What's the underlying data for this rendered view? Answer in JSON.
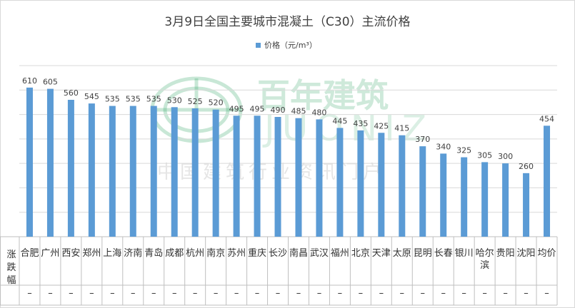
{
  "chart_data": {
    "type": "bar",
    "title": "3月9日全国主要城市混凝土（C30）主流价格",
    "legend_label": "价格（元/m³）",
    "legend_position": "top-center",
    "grid": true,
    "bar_color": "#5b9bd5",
    "ylim": [
      0,
      700
    ],
    "categories": [
      "合肥",
      "广州",
      "西安",
      "郑州",
      "上海",
      "济南",
      "青岛",
      "成都",
      "杭州",
      "南京",
      "苏州",
      "重庆",
      "长沙",
      "南昌",
      "武汉",
      "福州",
      "北京",
      "天津",
      "太原",
      "昆明",
      "长春",
      "银川",
      "哈尔滨",
      "贵阳",
      "沈阳",
      "均价"
    ],
    "values": [
      610,
      605,
      560,
      545,
      535,
      535,
      535,
      530,
      525,
      520,
      495,
      495,
      490,
      485,
      480,
      445,
      435,
      425,
      415,
      370,
      340,
      325,
      305,
      300,
      260,
      454
    ],
    "change_row_label": "涨跌幅",
    "changes": [
      "–",
      "–",
      "–",
      "–",
      "–",
      "–",
      "–",
      "–",
      "–",
      "–",
      "–",
      "–",
      "–",
      "–",
      "–",
      "–",
      "–",
      "–",
      "–",
      "–",
      "–",
      "–",
      "–",
      "–",
      "–",
      "–"
    ]
  },
  "watermark": {
    "brand_cn": "百年建筑",
    "brand_en": "JUONIZ",
    "tagline": "中国建筑行业资讯门户"
  }
}
